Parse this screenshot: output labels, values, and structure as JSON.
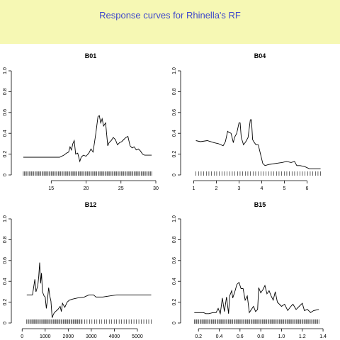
{
  "header": {
    "title": "Response curves for Rhinella's RF",
    "background": "#f6f8b4",
    "title_color": "#3f48cc"
  },
  "chart_data": [
    {
      "type": "line",
      "title": "B01",
      "xlim": [
        10.5,
        30
      ],
      "ylim": [
        0,
        1
      ],
      "xticks": [
        "15",
        "20",
        "25",
        "30"
      ],
      "xtick_values": [
        15,
        20,
        25,
        30
      ],
      "yticks": [
        "0",
        "0.2",
        "0.4",
        "0.6",
        "0.8",
        "1.0"
      ],
      "ytick_values": [
        0,
        0.2,
        0.4,
        0.6,
        0.8,
        1.0
      ],
      "rug": "dense",
      "x": [
        11,
        16.2,
        16.8,
        17.2,
        17.5,
        17.7,
        17.9,
        18.1,
        18.3,
        18.5,
        18.8,
        19.1,
        19.3,
        19.6,
        20.0,
        20.4,
        20.7,
        21.0,
        21.4,
        21.7,
        21.9,
        22.1,
        22.3,
        22.5,
        22.8,
        23.1,
        23.3,
        23.6,
        23.9,
        24.2,
        24.5,
        24.8,
        25.1,
        25.4,
        25.7,
        26.0,
        26.3,
        26.6,
        26.9,
        27.2,
        27.5,
        27.8,
        28.1,
        28.4,
        29.4
      ],
      "y": [
        0.17,
        0.17,
        0.19,
        0.21,
        0.22,
        0.27,
        0.24,
        0.3,
        0.33,
        0.2,
        0.21,
        0.13,
        0.17,
        0.19,
        0.18,
        0.21,
        0.25,
        0.22,
        0.4,
        0.56,
        0.57,
        0.5,
        0.54,
        0.47,
        0.5,
        0.28,
        0.31,
        0.33,
        0.36,
        0.34,
        0.29,
        0.31,
        0.32,
        0.34,
        0.36,
        0.37,
        0.28,
        0.26,
        0.27,
        0.24,
        0.25,
        0.23,
        0.2,
        0.19,
        0.19
      ]
    },
    {
      "type": "line",
      "title": "B04",
      "xlim": [
        0.8,
        6.8
      ],
      "ylim": [
        0,
        1
      ],
      "xticks": [
        "1",
        "2",
        "3",
        "4",
        "5",
        "6"
      ],
      "xtick_values": [
        1,
        2,
        3,
        4,
        5,
        6
      ],
      "yticks": [
        "0",
        "0.2",
        "0.4",
        "0.6",
        "0.8",
        "1.0"
      ],
      "ytick_values": [
        0,
        0.2,
        0.4,
        0.6,
        0.8,
        1.0
      ],
      "rug": "sparse",
      "x": [
        1.1,
        1.3,
        1.6,
        1.9,
        2.1,
        2.3,
        2.4,
        2.5,
        2.55,
        2.65,
        2.75,
        2.8,
        2.9,
        3.0,
        3.05,
        3.1,
        3.2,
        3.3,
        3.4,
        3.5,
        3.55,
        3.6,
        3.65,
        3.75,
        3.85,
        3.95,
        4.05,
        4.15,
        4.3,
        4.6,
        4.9,
        5.1,
        5.3,
        5.45,
        5.55,
        5.7,
        5.9,
        6.1,
        6.3,
        6.6
      ],
      "y": [
        0.33,
        0.32,
        0.33,
        0.31,
        0.3,
        0.28,
        0.32,
        0.42,
        0.41,
        0.4,
        0.31,
        0.36,
        0.4,
        0.5,
        0.5,
        0.36,
        0.29,
        0.32,
        0.36,
        0.53,
        0.53,
        0.34,
        0.32,
        0.29,
        0.29,
        0.2,
        0.11,
        0.09,
        0.1,
        0.11,
        0.12,
        0.13,
        0.12,
        0.13,
        0.09,
        0.09,
        0.08,
        0.06,
        0.06,
        0.06
      ]
    },
    {
      "type": "line",
      "title": "B12",
      "xlim": [
        -100,
        5800
      ],
      "ylim": [
        0,
        1
      ],
      "xticks": [
        "0",
        "1000",
        "2000",
        "3000",
        "4000",
        "5000"
      ],
      "xtick_values": [
        0,
        1000,
        2000,
        3000,
        4000,
        5000
      ],
      "yticks": [
        "0",
        "0.2",
        "0.4",
        "0.6",
        "0.8",
        "1.0"
      ],
      "ytick_values": [
        0,
        0.2,
        0.4,
        0.6,
        0.8,
        1.0
      ],
      "rug": "sparse-dense-left",
      "x": [
        200,
        450,
        550,
        600,
        680,
        720,
        760,
        800,
        840,
        880,
        950,
        1000,
        1050,
        1100,
        1150,
        1200,
        1250,
        1300,
        1350,
        1400,
        1450,
        1550,
        1650,
        1700,
        1750,
        1850,
        1950,
        2050,
        2200,
        2400,
        2700,
        2900,
        3100,
        3200,
        3500,
        3800,
        4100,
        4500,
        5000,
        5600
      ],
      "y": [
        0.27,
        0.27,
        0.42,
        0.3,
        0.36,
        0.45,
        0.58,
        0.38,
        0.48,
        0.3,
        0.26,
        0.25,
        0.14,
        0.23,
        0.34,
        0.26,
        0.21,
        0.05,
        0.08,
        0.1,
        0.11,
        0.13,
        0.16,
        0.11,
        0.19,
        0.15,
        0.2,
        0.22,
        0.23,
        0.24,
        0.25,
        0.27,
        0.27,
        0.25,
        0.25,
        0.26,
        0.27,
        0.27,
        0.27,
        0.27
      ]
    },
    {
      "type": "line",
      "title": "B15",
      "xlim": [
        0.11,
        1.42
      ],
      "ylim": [
        0,
        1
      ],
      "xticks": [
        "0.2",
        "0.4",
        "0.6",
        "0.8",
        "1.0",
        "1.2",
        "1.4"
      ],
      "xtick_values": [
        0.2,
        0.4,
        0.6,
        0.8,
        1.0,
        1.2,
        1.4
      ],
      "yticks": [
        "0",
        "0.2",
        "0.4",
        "0.6",
        "0.8",
        "1.0"
      ],
      "ytick_values": [
        0.0,
        0.2,
        0.4,
        0.6,
        0.8,
        1.0
      ],
      "rug": "dense",
      "x": [
        0.16,
        0.25,
        0.27,
        0.3,
        0.34,
        0.37,
        0.39,
        0.41,
        0.43,
        0.45,
        0.47,
        0.49,
        0.5,
        0.52,
        0.53,
        0.55,
        0.57,
        0.59,
        0.61,
        0.63,
        0.65,
        0.67,
        0.69,
        0.71,
        0.73,
        0.75,
        0.77,
        0.78,
        0.8,
        0.82,
        0.84,
        0.86,
        0.88,
        0.9,
        0.92,
        0.94,
        0.96,
        0.98,
        1.0,
        1.03,
        1.06,
        1.09,
        1.11,
        1.14,
        1.17,
        1.2,
        1.22,
        1.25,
        1.28,
        1.31,
        1.36
      ],
      "y": [
        0.1,
        0.1,
        0.09,
        0.09,
        0.1,
        0.1,
        0.14,
        0.09,
        0.24,
        0.11,
        0.25,
        0.09,
        0.26,
        0.31,
        0.24,
        0.3,
        0.37,
        0.39,
        0.33,
        0.33,
        0.22,
        0.26,
        0.1,
        0.13,
        0.16,
        0.11,
        0.13,
        0.34,
        0.29,
        0.32,
        0.36,
        0.28,
        0.31,
        0.26,
        0.22,
        0.3,
        0.2,
        0.18,
        0.16,
        0.18,
        0.12,
        0.16,
        0.18,
        0.13,
        0.16,
        0.19,
        0.12,
        0.13,
        0.1,
        0.12,
        0.13
      ]
    }
  ]
}
